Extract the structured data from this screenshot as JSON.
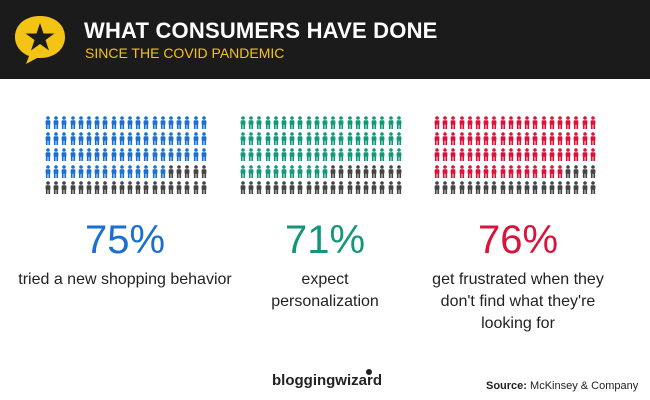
{
  "header": {
    "title": "WHAT CONSUMERS HAVE DONE",
    "subtitle": "SINCE THE COVID PANDEMIC",
    "logo_icon": "star-speech-bubble-icon",
    "background_color": "#1b1b1b",
    "accent_color": "#f4c415"
  },
  "stats": [
    {
      "percent_label": "75%",
      "percent_value": 75,
      "description": "tried a new shopping behavior",
      "color": "#1a6fd1"
    },
    {
      "percent_label": "71%",
      "percent_value": 71,
      "description": "expect personalization",
      "color": "#13967a"
    },
    {
      "percent_label": "76%",
      "percent_value": 76,
      "description": "get frustrated when they don't find what they're looking for",
      "color": "#d8143a"
    }
  ],
  "inactive_color": "#444444",
  "footer": {
    "brand": "bloggingwizard",
    "source_label": "Source:",
    "source_text": "McKinsey & Company"
  }
}
